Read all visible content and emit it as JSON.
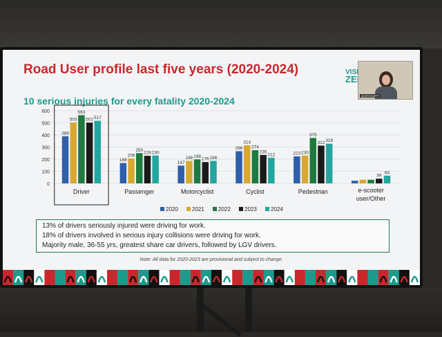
{
  "slide": {
    "title": "Road User profile last five years (2020-2024)",
    "subtitle": "10 serious injuries for every fatality 2020-2024",
    "logo_top": "VISI",
    "logo_bottom": "ZER",
    "video_tag": "AOIFE DUFFY",
    "notes": [
      "13% of drivers seriously injured were driving for work.",
      "18% of drivers involved in serious injury collisions were driving for work.",
      "Majority male, 36-55 yrs, greatest share car drivers, followed by LGV drivers."
    ],
    "footnote": "Note: All data for 2020-2023 are provisional and subject to change."
  },
  "colors": {
    "2020": "#2e5fa8",
    "2021": "#d8a833",
    "2022": "#1e7a3e",
    "2023": "#1a1a1a",
    "2024": "#23a6a0",
    "title": "#c8282c",
    "subtitle": "#1c9a8c"
  },
  "chart_data": {
    "type": "bar",
    "categories": [
      "Driver",
      "Passenger",
      "Motorcyclist",
      "Cyclist",
      "Pedestrian",
      "e-scooter user/Other"
    ],
    "highlighted_category": "Driver",
    "yticks": [
      0,
      100,
      200,
      300,
      400,
      500,
      600
    ],
    "ylim": [
      0,
      600
    ],
    "grid": true,
    "legend_position": "bottom",
    "series": [
      {
        "name": "2020",
        "values": [
          389,
          168,
          147,
          266,
          223,
          22
        ],
        "labels": [
          "389",
          "168",
          "147",
          "266",
          "223",
          ""
        ]
      },
      {
        "name": "2021",
        "values": [
          503,
          206,
          186,
          314,
          230,
          30
        ],
        "labels": [
          "503",
          "206",
          "186",
          "314",
          "230",
          ""
        ]
      },
      {
        "name": "2022",
        "values": [
          563,
          250,
          198,
          274,
          375,
          30
        ],
        "labels": [
          "563",
          "250",
          "198",
          "274",
          "375",
          ""
        ]
      },
      {
        "name": "2023",
        "values": [
          502,
          228,
          176,
          235,
          312,
          39
        ],
        "labels": [
          "502",
          "228",
          "176",
          "235",
          "312",
          "39"
        ]
      },
      {
        "name": "2024",
        "values": [
          517,
          230,
          186,
          212,
          328,
          64
        ],
        "labels": [
          "517",
          "230",
          "186",
          "212",
          "328",
          "64"
        ]
      }
    ]
  }
}
